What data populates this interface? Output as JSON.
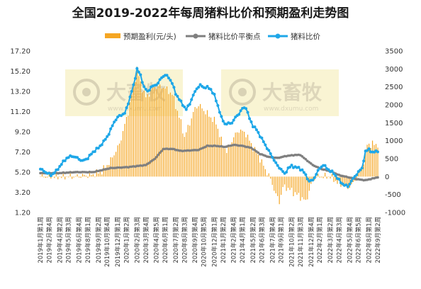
{
  "chart_data": {
    "type": "bar+line",
    "title": "全国2019-2022年每周猪料比价和预期盈利走势图",
    "legend": [
      {
        "name": "预期盈利(元/头)",
        "kind": "bar",
        "color": "#F5A623"
      },
      {
        "name": "猪料比价平衡点",
        "kind": "line",
        "color": "#7F7F7F"
      },
      {
        "name": "猪料比价",
        "kind": "line",
        "color": "#1EA7E8"
      }
    ],
    "legend_placement": "top",
    "grid": false,
    "left_axis": {
      "ticks": [
        "17.20",
        "15.20",
        "13.20",
        "11.20",
        "9.20",
        "7.20",
        "5.20",
        "3.20",
        "1.20"
      ],
      "range": [
        1.2,
        17.2
      ]
    },
    "right_axis": {
      "ticks": [
        "3500",
        "3000",
        "2500",
        "2000",
        "1500",
        "1000",
        "500",
        "0",
        "-500",
        "-1000"
      ],
      "range": [
        -1000,
        3500
      ]
    },
    "x_tick_labels": [
      "2019年1月第1周",
      "2019年2月第4周",
      "2019年4月第2周",
      "2019年5月第3周",
      "2019年6月第4周",
      "2019年8月第1周",
      "2019年9月第2周",
      "2019年10月第4周",
      "2019年12月第1周",
      "2020年1月第2周",
      "2020年2月第3周",
      "2020年3月第4周",
      "2020年4月第5周",
      "2020年6月第1周",
      "2020年7月第2周",
      "2020年8月第3周",
      "2020年9月第4周",
      "2020年10月第5周",
      "2020年12月第1周",
      "2021年1月第2周",
      "2021年2月第4周",
      "2021年4月第1周",
      "2021年5月第2周",
      "2021年6月第3周",
      "2021年7月第4周",
      "2021年9月第1周",
      "2021年10月第2周",
      "2021年11月第3周",
      "2021年12月第4周",
      "2022年2月第1周",
      "2022年3月第2周",
      "2022年4月第3周",
      "2022年5月第4周",
      "2022年6月第5周",
      "2022年8月第1周",
      "2022年9月第2周"
    ],
    "series_anchor_points": {
      "note_units": "x = week index (0-192); 猪料比价 and 猪料比价平衡点 in left-axis units; 预期盈利 in 元/头 (right axis)",
      "猪料比价": [
        [
          0,
          5.5
        ],
        [
          3,
          5.2
        ],
        [
          6,
          4.9
        ],
        [
          9,
          5.3
        ],
        [
          12,
          6.0
        ],
        [
          15,
          6.6
        ],
        [
          18,
          6.8
        ],
        [
          21,
          6.6
        ],
        [
          24,
          6.3
        ],
        [
          27,
          6.6
        ],
        [
          30,
          7.2
        ],
        [
          33,
          7.6
        ],
        [
          36,
          8.2
        ],
        [
          39,
          9.0
        ],
        [
          42,
          10.2
        ],
        [
          45,
          10.8
        ],
        [
          48,
          11.0
        ],
        [
          51,
          12.6
        ],
        [
          53,
          13.8
        ],
        [
          55,
          15.4
        ],
        [
          57,
          14.8
        ],
        [
          59,
          13.6
        ],
        [
          61,
          13.2
        ],
        [
          63,
          13.6
        ],
        [
          65,
          13.8
        ],
        [
          67,
          14.0
        ],
        [
          69,
          14.6
        ],
        [
          71,
          14.8
        ],
        [
          73,
          14.6
        ],
        [
          75,
          14.0
        ],
        [
          77,
          13.0
        ],
        [
          79,
          12.4
        ],
        [
          81,
          11.9
        ],
        [
          83,
          11.4
        ],
        [
          85,
          12.0
        ],
        [
          87,
          12.8
        ],
        [
          89,
          13.5
        ],
        [
          91,
          13.8
        ],
        [
          93,
          13.6
        ],
        [
          95,
          13.6
        ],
        [
          97,
          13.4
        ],
        [
          99,
          12.8
        ],
        [
          101,
          11.8
        ],
        [
          103,
          10.6
        ],
        [
          105,
          10.0
        ],
        [
          107,
          10.0
        ],
        [
          109,
          10.1
        ],
        [
          111,
          10.6
        ],
        [
          113,
          11.0
        ],
        [
          115,
          11.5
        ],
        [
          117,
          11.6
        ],
        [
          119,
          10.5
        ],
        [
          121,
          9.8
        ],
        [
          123,
          9.4
        ],
        [
          125,
          8.8
        ],
        [
          127,
          8.2
        ],
        [
          129,
          7.6
        ],
        [
          131,
          7.0
        ],
        [
          133,
          6.4
        ],
        [
          135,
          5.8
        ],
        [
          137,
          5.5
        ],
        [
          139,
          5.0
        ],
        [
          141,
          5.6
        ],
        [
          143,
          5.8
        ],
        [
          145,
          5.7
        ],
        [
          147,
          5.6
        ],
        [
          149,
          5.4
        ],
        [
          151,
          4.9
        ],
        [
          153,
          4.3
        ],
        [
          155,
          4.4
        ],
        [
          157,
          5.0
        ],
        [
          159,
          5.6
        ],
        [
          161,
          5.9
        ],
        [
          163,
          5.6
        ],
        [
          165,
          5.3
        ],
        [
          167,
          5.1
        ],
        [
          169,
          4.6
        ],
        [
          171,
          4.2
        ],
        [
          173,
          3.9
        ],
        [
          175,
          3.8
        ],
        [
          177,
          4.3
        ],
        [
          179,
          4.8
        ],
        [
          181,
          5.2
        ],
        [
          183,
          5.6
        ],
        [
          185,
          7.2
        ],
        [
          187,
          7.5
        ],
        [
          189,
          7.1
        ],
        [
          191,
          7.3
        ],
        [
          192,
          7.3
        ]
      ],
      "猪料比价平衡点": [
        [
          0,
          5.1
        ],
        [
          10,
          5.1
        ],
        [
          20,
          5.2
        ],
        [
          30,
          5.2
        ],
        [
          40,
          5.6
        ],
        [
          50,
          5.7
        ],
        [
          60,
          5.9
        ],
        [
          65,
          6.5
        ],
        [
          70,
          7.5
        ],
        [
          75,
          7.5
        ],
        [
          80,
          7.3
        ],
        [
          90,
          7.4
        ],
        [
          95,
          7.8
        ],
        [
          100,
          7.8
        ],
        [
          105,
          7.7
        ],
        [
          110,
          7.9
        ],
        [
          115,
          7.8
        ],
        [
          120,
          7.6
        ],
        [
          125,
          7.0
        ],
        [
          130,
          6.7
        ],
        [
          135,
          6.6
        ],
        [
          140,
          6.8
        ],
        [
          145,
          6.9
        ],
        [
          148,
          6.9
        ],
        [
          150,
          6.6
        ],
        [
          155,
          5.9
        ],
        [
          160,
          5.5
        ],
        [
          165,
          5.3
        ],
        [
          170,
          4.9
        ],
        [
          175,
          4.7
        ],
        [
          180,
          4.5
        ],
        [
          185,
          4.4
        ],
        [
          190,
          4.6
        ],
        [
          192,
          4.7
        ]
      ],
      "预期盈利": [
        [
          0,
          0
        ],
        [
          20,
          0
        ],
        [
          30,
          60
        ],
        [
          35,
          150
        ],
        [
          40,
          450
        ],
        [
          45,
          900
        ],
        [
          50,
          1800
        ],
        [
          53,
          2500
        ],
        [
          55,
          3000
        ],
        [
          57,
          2600
        ],
        [
          60,
          2200
        ],
        [
          65,
          2500
        ],
        [
          70,
          2500
        ],
        [
          75,
          2300
        ],
        [
          80,
          1500
        ],
        [
          82,
          1100
        ],
        [
          85,
          1500
        ],
        [
          88,
          1900
        ],
        [
          90,
          2000
        ],
        [
          95,
          1750
        ],
        [
          100,
          1500
        ],
        [
          103,
          1000
        ],
        [
          106,
          700
        ],
        [
          110,
          1100
        ],
        [
          113,
          1300
        ],
        [
          117,
          1200
        ],
        [
          120,
          900
        ],
        [
          125,
          500
        ],
        [
          128,
          200
        ],
        [
          130,
          30
        ],
        [
          132,
          -200
        ],
        [
          134,
          -500
        ],
        [
          136,
          -700
        ],
        [
          138,
          -300
        ],
        [
          140,
          -300
        ],
        [
          143,
          -400
        ],
        [
          146,
          -500
        ],
        [
          149,
          -600
        ],
        [
          151,
          -700
        ],
        [
          153,
          -400
        ],
        [
          155,
          -100
        ],
        [
          157,
          0
        ],
        [
          160,
          0
        ],
        [
          165,
          0
        ],
        [
          170,
          -200
        ],
        [
          175,
          -300
        ],
        [
          178,
          -200
        ],
        [
          180,
          0
        ],
        [
          183,
          200
        ],
        [
          186,
          900
        ],
        [
          189,
          900
        ],
        [
          192,
          900
        ]
      ]
    }
  },
  "watermark": {
    "brand": "大畜牧",
    "url": "www.dxumu.com"
  }
}
